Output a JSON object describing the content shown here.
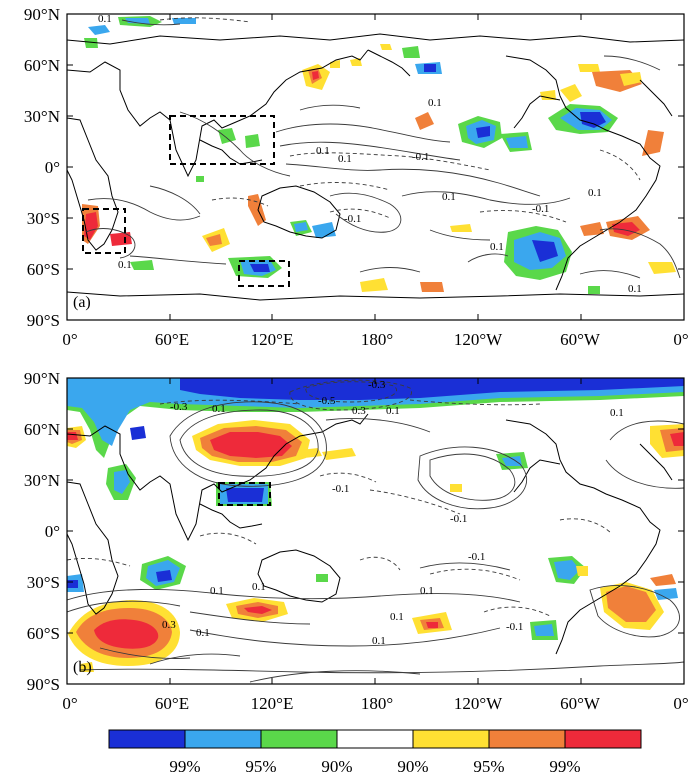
{
  "panels": [
    {
      "label": "(a)",
      "lat_ticks": [
        "90°N",
        "60°N",
        "30°N",
        "0°",
        "30°S",
        "60°S",
        "90°S"
      ],
      "lon_ticks": [
        "0°",
        "60°E",
        "120°E",
        "180°",
        "120°W",
        "60°W",
        "0°"
      ],
      "contour_labels": [
        "0.1",
        "0.1",
        "-0.1",
        "0.1",
        "-0.1",
        "0.1",
        "-0.1",
        "0.1",
        "0.1",
        "0.1",
        "0.1",
        "0.1"
      ]
    },
    {
      "label": "(b)",
      "lat_ticks": [
        "90°N",
        "60°N",
        "30°N",
        "0°",
        "30°S",
        "60°S",
        "90°S"
      ],
      "lon_ticks": [
        "0°",
        "60°E",
        "120°E",
        "180°",
        "120°W",
        "60°W",
        "0°"
      ],
      "contour_labels": [
        "-0.5",
        "-0.3",
        "-0.3",
        "0.3",
        "0.1",
        "0.1",
        "-0.1",
        "0.1",
        "-0.1",
        "0.1",
        "-0.1",
        "0.3",
        "0.1",
        "0.1",
        "0.1",
        "0.1",
        "-0.1",
        "0.1"
      ]
    }
  ],
  "colorbar": {
    "labels": [
      "99%",
      "95%",
      "90%",
      "90%",
      "95%",
      "99%"
    ],
    "colors": [
      "#1a2fd6",
      "#3aa7ee",
      "#5ad84a",
      "#ffffff",
      "#ffe033",
      "#f0803a",
      "#ee2a3a"
    ]
  }
}
